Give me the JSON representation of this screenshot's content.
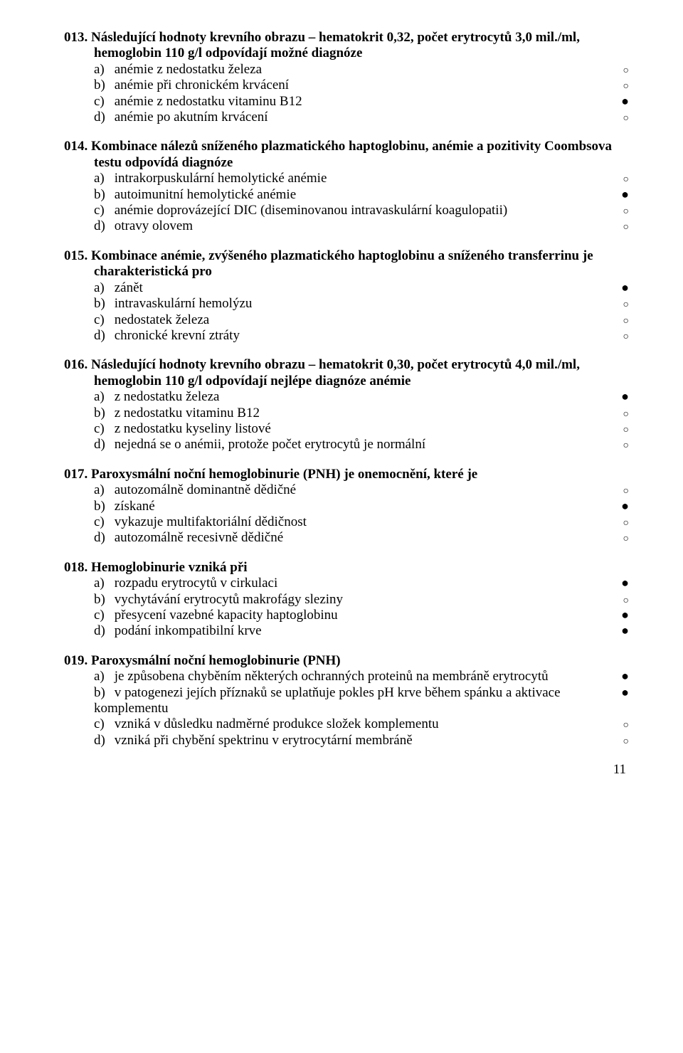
{
  "markers": {
    "correct": "●",
    "incorrect": "○"
  },
  "page_number": "11",
  "questions": [
    {
      "number": "013.",
      "stem": [
        "Následující hodnoty krevního obrazu – hematokrit 0,32, počet erytrocytů 3,0 mil./ml, hemoglobin 110 g/l odpovídají možné diagnóze"
      ],
      "options": [
        {
          "label": "a)",
          "text": "anémie z nedostatku železa",
          "correct": false
        },
        {
          "label": "b)",
          "text": "anémie při chronickém krvácení",
          "correct": false
        },
        {
          "label": "c)",
          "text": "anémie z nedostatku vitaminu B12",
          "correct": true
        },
        {
          "label": "d)",
          "text": "anémie po akutním krvácení",
          "correct": false
        }
      ]
    },
    {
      "number": "014.",
      "stem": [
        "Kombinace nálezů sníženého plazmatického haptoglobinu, anémie a pozitivity Coombsova testu odpovídá diagnóze"
      ],
      "options": [
        {
          "label": "a)",
          "text": "intrakorpuskulární hemolytické anémie",
          "correct": false
        },
        {
          "label": "b)",
          "text": "autoimunitní hemolytické anémie",
          "correct": true
        },
        {
          "label": "c)",
          "text": "anémie doprovázející DIC (diseminovanou intravaskulární koagulopatii)",
          "correct": false
        },
        {
          "label": "d)",
          "text": "otravy olovem",
          "correct": false
        }
      ]
    },
    {
      "number": "015.",
      "stem": [
        "Kombinace anémie, zvýšeného plazmatického haptoglobinu a sníženého transferrinu je charakteristická pro"
      ],
      "options": [
        {
          "label": "a)",
          "text": "zánět",
          "correct": true
        },
        {
          "label": "b)",
          "text": "intravaskulární hemolýzu",
          "correct": false
        },
        {
          "label": "c)",
          "text": "nedostatek železa",
          "correct": false
        },
        {
          "label": "d)",
          "text": "chronické krevní ztráty",
          "correct": false
        }
      ]
    },
    {
      "number": "016.",
      "stem": [
        "Následující hodnoty krevního obrazu – hematokrit 0,30, počet erytrocytů 4,0 mil./ml, hemoglobin 110 g/l odpovídají nejlépe diagnóze anémie"
      ],
      "options": [
        {
          "label": "a)",
          "text": "z nedostatku železa",
          "correct": true
        },
        {
          "label": "b)",
          "text": "z nedostatku vitaminu B12",
          "correct": false
        },
        {
          "label": "c)",
          "text": "z nedostatku kyseliny listové",
          "correct": false
        },
        {
          "label": "d)",
          "text": "nejedná se o anémii, protože počet erytrocytů je normální",
          "correct": false
        }
      ]
    },
    {
      "number": "017.",
      "stem": [
        "Paroxysmální noční hemoglobinurie (PNH) je onemocnění, které je"
      ],
      "options": [
        {
          "label": "a)",
          "text": "autozomálně dominantně dědičné",
          "correct": false
        },
        {
          "label": "b)",
          "text": "získané",
          "correct": true
        },
        {
          "label": "c)",
          "text": "vykazuje multifaktoriální dědičnost",
          "correct": false
        },
        {
          "label": "d)",
          "text": "autozomálně recesivně dědičné",
          "correct": false
        }
      ]
    },
    {
      "number": "018.",
      "stem": [
        "Hemoglobinurie vzniká při"
      ],
      "options": [
        {
          "label": "a)",
          "text": "rozpadu erytrocytů v cirkulaci",
          "correct": true
        },
        {
          "label": "b)",
          "text": "vychytávání erytrocytů makrofágy sleziny",
          "correct": false
        },
        {
          "label": "c)",
          "text": "přesycení vazebné kapacity haptoglobinu",
          "correct": true
        },
        {
          "label": "d)",
          "text": "podání inkompatibilní krve",
          "correct": true
        }
      ]
    },
    {
      "number": "019.",
      "stem": [
        "Paroxysmální noční hemoglobinurie (PNH)"
      ],
      "options": [
        {
          "label": "a)",
          "text": "je způsobena chyběním některých ochranných proteinů na membráně erytrocytů",
          "correct": true
        },
        {
          "label": "b)",
          "text": "v patogenezi jejích příznaků se uplatňuje pokles pH krve během spánku a aktivace komplementu",
          "correct": true
        },
        {
          "label": "c)",
          "text": "vzniká v důsledku nadměrné produkce složek komplementu",
          "correct": false
        },
        {
          "label": "d)",
          "text": "vzniká při chybění spektrinu v erytrocytární membráně",
          "correct": false
        }
      ]
    }
  ]
}
